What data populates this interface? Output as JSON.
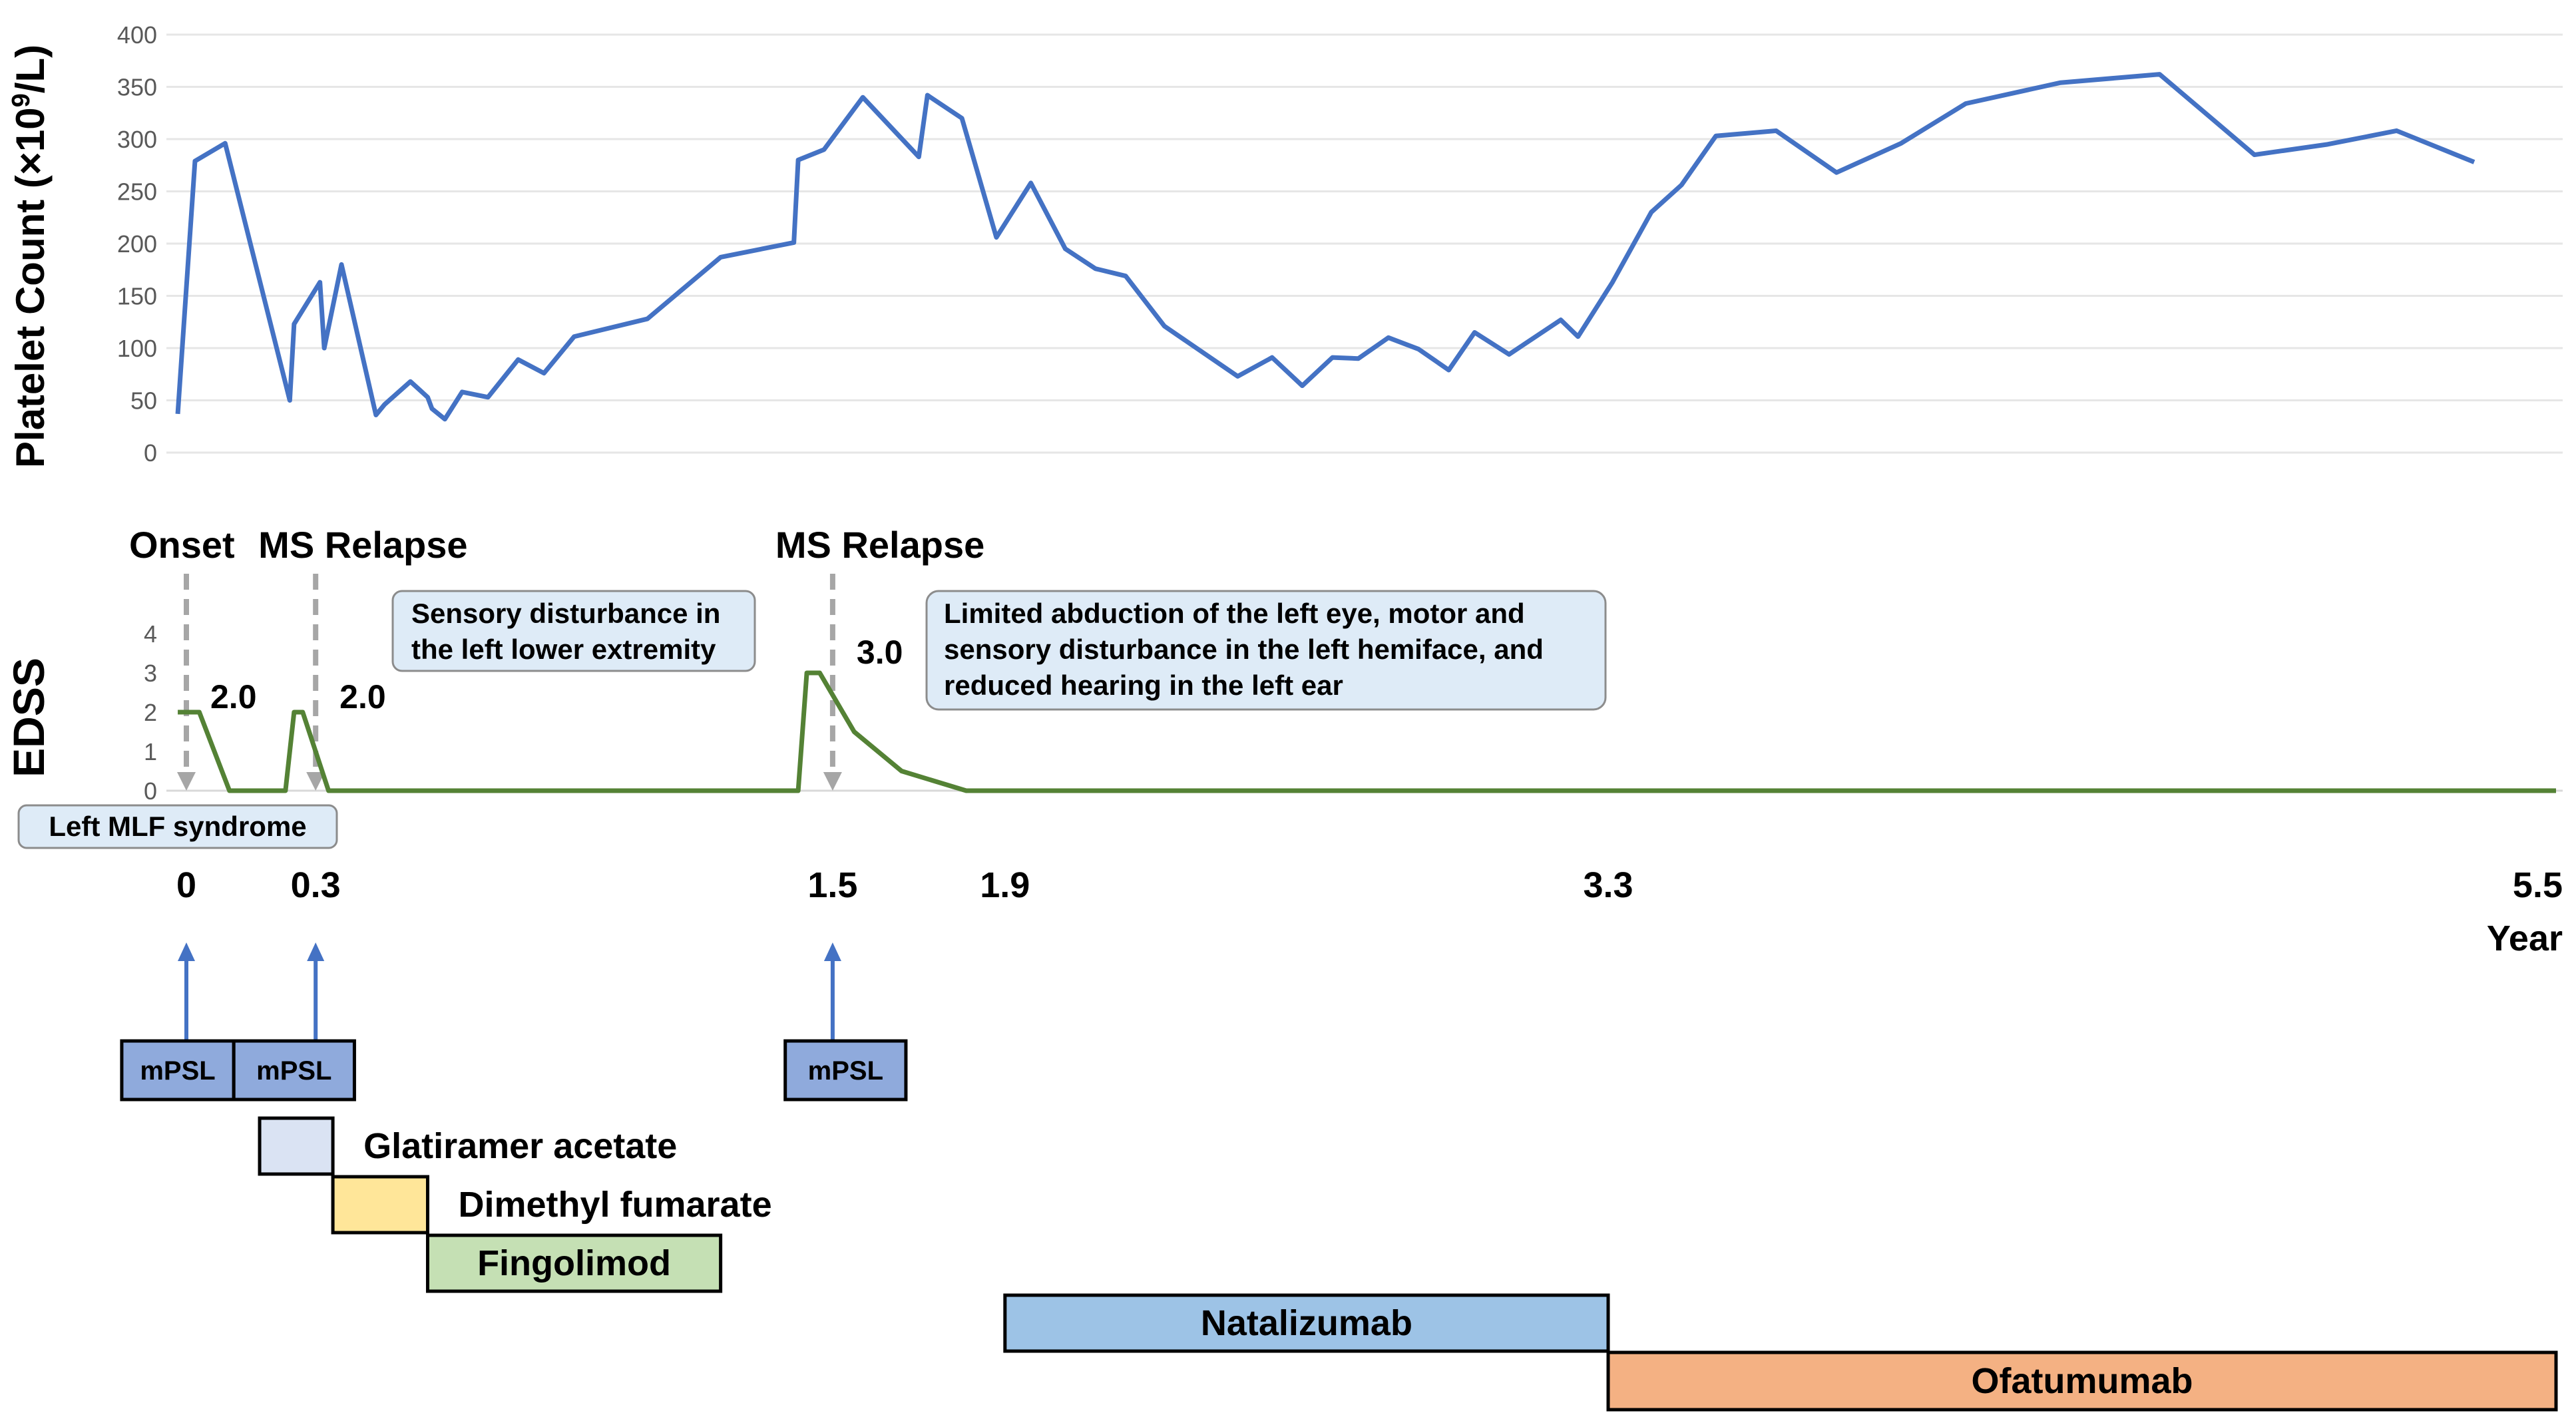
{
  "chart_data": [
    {
      "type": "line",
      "ylabel": "Platelet Count (×10⁹/L)",
      "ylabel_main": "Platelet Count (",
      "ylabel_unit": "×10",
      "ylabel_sup": "9",
      "ylabel_end": "/L)",
      "yticks": [
        "0",
        "50",
        "100",
        "150",
        "200",
        "250",
        "300",
        "350",
        "400"
      ],
      "ylim": [
        0,
        400
      ],
      "xlim": [
        0,
        5.5
      ],
      "color": "#4472C4",
      "series": [
        {
          "points": [
            [
              -0.02,
              37
            ],
            [
              0.02,
              279
            ],
            [
              0.09,
              296
            ],
            [
              0.24,
              50
            ],
            [
              0.25,
              123
            ],
            [
              0.31,
              163
            ],
            [
              0.32,
              100
            ],
            [
              0.36,
              180
            ],
            [
              0.44,
              36
            ],
            [
              0.46,
              46
            ],
            [
              0.52,
              68
            ],
            [
              0.56,
              53
            ],
            [
              0.57,
              42
            ],
            [
              0.6,
              32
            ],
            [
              0.64,
              58
            ],
            [
              0.7,
              53
            ],
            [
              0.77,
              89
            ],
            [
              0.83,
              76
            ],
            [
              0.9,
              111
            ],
            [
              1.07,
              128
            ],
            [
              1.24,
              187
            ],
            [
              1.41,
              201
            ],
            [
              1.42,
              280
            ],
            [
              1.48,
              290
            ],
            [
              1.57,
              340
            ],
            [
              1.7,
              283
            ],
            [
              1.72,
              342
            ],
            [
              1.8,
              320
            ],
            [
              1.88,
              206
            ],
            [
              1.96,
              258
            ],
            [
              2.04,
              195
            ],
            [
              2.11,
              176
            ],
            [
              2.18,
              169
            ],
            [
              2.27,
              121
            ],
            [
              2.44,
              73
            ],
            [
              2.52,
              91
            ],
            [
              2.59,
              64
            ],
            [
              2.66,
              91
            ],
            [
              2.72,
              90
            ],
            [
              2.79,
              110
            ],
            [
              2.86,
              99
            ],
            [
              2.93,
              79
            ],
            [
              2.99,
              115
            ],
            [
              3.07,
              94
            ],
            [
              3.19,
              127
            ],
            [
              3.23,
              111
            ],
            [
              3.31,
              163
            ],
            [
              3.4,
              230
            ],
            [
              3.47,
              256
            ],
            [
              3.55,
              303
            ],
            [
              3.69,
              308
            ],
            [
              3.83,
              268
            ],
            [
              3.98,
              296
            ],
            [
              4.13,
              334
            ],
            [
              4.35,
              354
            ],
            [
              4.58,
              362
            ],
            [
              4.8,
              285
            ],
            [
              4.97,
              295
            ],
            [
              5.13,
              308
            ],
            [
              5.31,
              278
            ]
          ]
        }
      ]
    },
    {
      "type": "line",
      "ylabel": "EDSS",
      "yticks": [
        "0",
        "1",
        "2",
        "3",
        "4"
      ],
      "ylim": [
        0,
        4
      ],
      "xlim": [
        0,
        5.5
      ],
      "color": "#548235",
      "series": [
        {
          "points": [
            [
              -0.02,
              2.0
            ],
            [
              0.03,
              2.0
            ],
            [
              0.1,
              0
            ],
            [
              0.23,
              0
            ],
            [
              0.25,
              2.0
            ],
            [
              0.27,
              2.0
            ],
            [
              0.33,
              0
            ],
            [
              1.42,
              0
            ],
            [
              1.44,
              3.0
            ],
            [
              1.47,
              3.0
            ],
            [
              1.55,
              1.5
            ],
            [
              1.66,
              0.5
            ],
            [
              1.81,
              0
            ],
            [
              5.5,
              0
            ]
          ]
        }
      ],
      "value_labels": [
        {
          "x": 0.0,
          "text": "2.0"
        },
        {
          "x": 0.3,
          "text": "2.0"
        },
        {
          "x": 1.5,
          "text": "3.0"
        }
      ]
    }
  ],
  "events": [
    {
      "x": 0.0,
      "label": "Onset"
    },
    {
      "x": 0.3,
      "label": "MS Relapse"
    },
    {
      "x": 1.5,
      "label": "MS Relapse"
    }
  ],
  "notes": [
    {
      "lines": [
        "Left MLF syndrome"
      ]
    },
    {
      "lines": [
        "Sensory disturbance in",
        "the left lower extremity"
      ]
    },
    {
      "lines": [
        "Limited abduction of the left eye, motor and",
        "sensory disturbance in the left hemiface, and",
        "reduced hearing in the left ear"
      ]
    }
  ],
  "timeline": {
    "ticks": [
      {
        "x": 0.0,
        "label": "0"
      },
      {
        "x": 0.3,
        "label": "0.3"
      },
      {
        "x": 1.5,
        "label": "1.5"
      },
      {
        "x": 1.9,
        "label": "1.9"
      },
      {
        "x": 3.3,
        "label": "3.3"
      },
      {
        "x": 5.5,
        "label": "5.5"
      }
    ],
    "unit": "Year"
  },
  "treatments": [
    {
      "label": "mPSL",
      "start": -0.15,
      "end": 0.11,
      "color": "#8FAADC",
      "text_inside": true
    },
    {
      "label": "mPSL",
      "start": 0.11,
      "end": 0.39,
      "color": "#8FAADC",
      "text_inside": true
    },
    {
      "label": "mPSL",
      "start": 1.39,
      "end": 1.67,
      "color": "#8FAADC",
      "text_inside": true
    },
    {
      "label": "Glatiramer acetate",
      "start": 0.17,
      "end": 0.34,
      "color": "#DAE3F3",
      "text_inside": false
    },
    {
      "label": "Dimethyl fumarate",
      "start": 0.34,
      "end": 0.56,
      "color": "#FFE699",
      "text_inside": false
    },
    {
      "label": "Fingolimod",
      "start": 0.56,
      "end": 1.24,
      "color": "#C5E0B4",
      "text_inside": true
    },
    {
      "label": "Natalizumab",
      "start": 1.9,
      "end": 3.3,
      "color": "#9DC3E6",
      "text_inside": true
    },
    {
      "label": "Ofatumumab",
      "start": 3.3,
      "end": 5.5,
      "color": "#F4B183",
      "text_inside": true
    }
  ]
}
